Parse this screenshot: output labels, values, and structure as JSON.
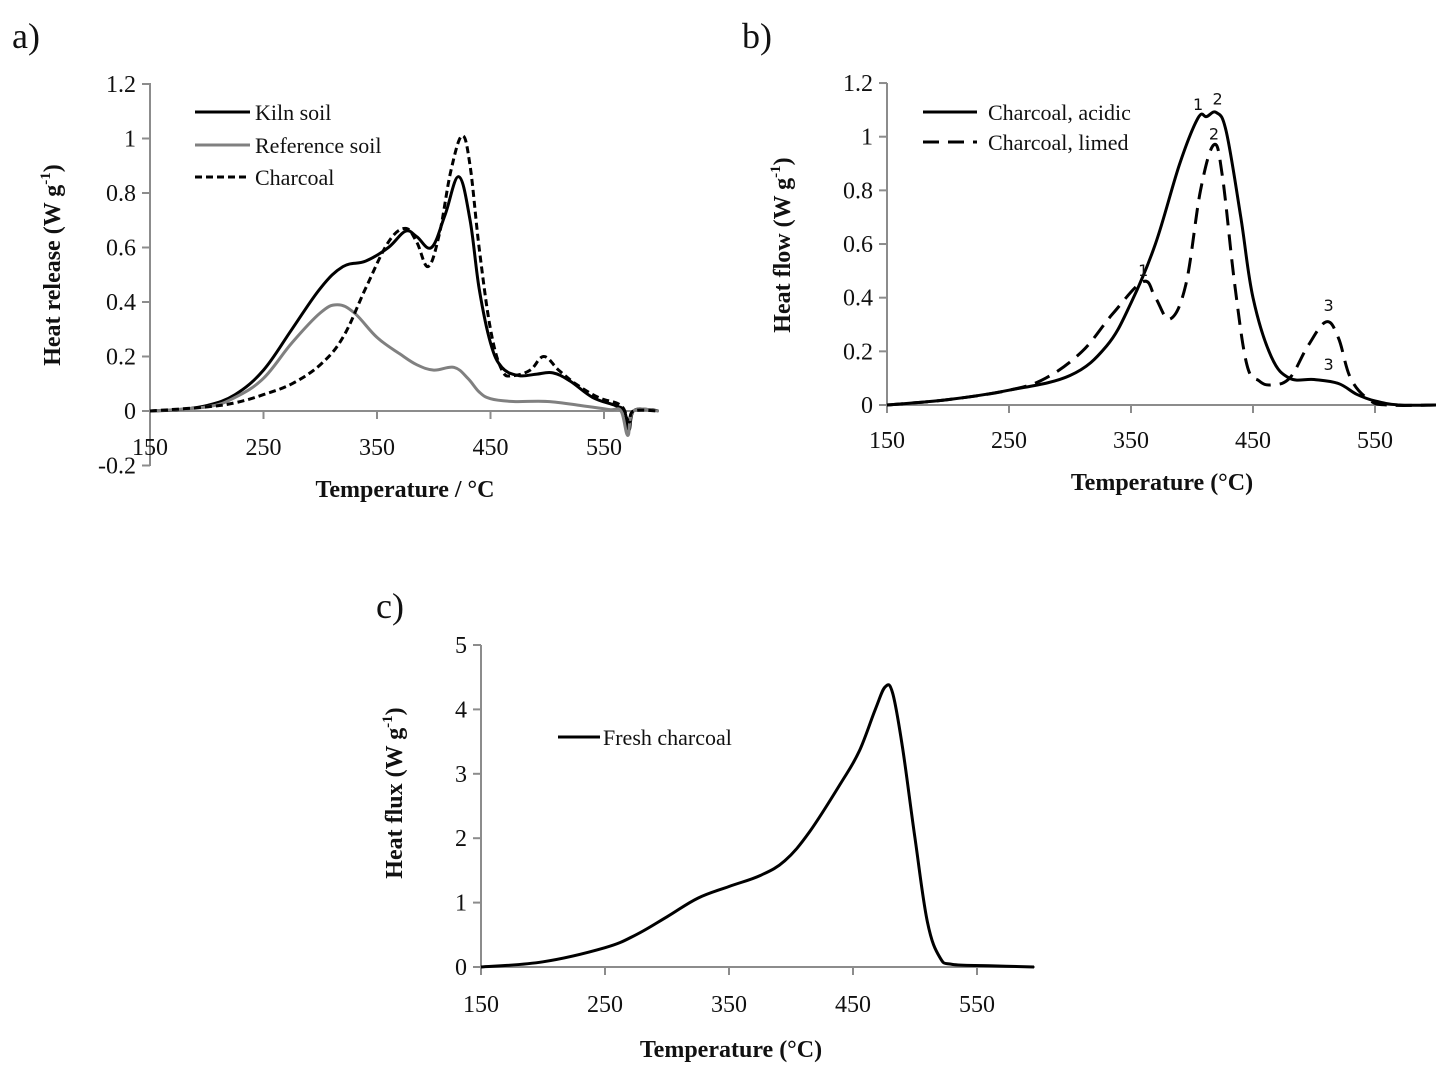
{
  "chart_data": [
    {
      "type": "line",
      "panel_label": "a)",
      "title": "",
      "xlabel": "Temperature / °C",
      "ylabel": "Heat release (W g",
      "ylabel_sup": "-1",
      "ylabel_close": ")",
      "xlim": [
        150,
        600
      ],
      "ylim": [
        -0.2,
        1.2
      ],
      "xticks": [
        "150",
        "250",
        "350",
        "450",
        "550"
      ],
      "xtick_values": [
        150,
        250,
        350,
        450,
        550
      ],
      "yticks": [
        "-0.2",
        "0",
        "0.2",
        "0.4",
        "0.6",
        "0.8",
        "1",
        "1.2"
      ],
      "ytick_values": [
        -0.2,
        0,
        0.2,
        0.4,
        0.6,
        0.8,
        1.0,
        1.2
      ],
      "grid": false,
      "legend_position": "top-left",
      "series": [
        {
          "name": "Kiln soil",
          "color": "#000000",
          "style": "solid",
          "x": [
            150,
            175,
            200,
            225,
            250,
            275,
            300,
            320,
            340,
            360,
            375,
            385,
            398,
            410,
            422,
            432,
            440,
            450,
            460,
            475,
            490,
            505,
            520,
            540,
            560,
            568,
            572,
            576,
            590,
            598
          ],
          "y": [
            0,
            0.005,
            0.02,
            0.06,
            0.15,
            0.3,
            0.45,
            0.53,
            0.55,
            0.6,
            0.66,
            0.64,
            0.6,
            0.72,
            0.86,
            0.7,
            0.45,
            0.25,
            0.16,
            0.13,
            0.135,
            0.14,
            0.11,
            0.05,
            0.02,
            0.0,
            -0.07,
            0.0,
            0.005,
            0.0
          ]
        },
        {
          "name": "Reference soil",
          "color": "#808080",
          "style": "solid",
          "x": [
            150,
            200,
            225,
            250,
            275,
            300,
            315,
            330,
            350,
            370,
            385,
            400,
            418,
            430,
            440,
            450,
            470,
            500,
            530,
            555,
            565,
            571,
            576,
            598
          ],
          "y": [
            0,
            0.015,
            0.05,
            0.12,
            0.25,
            0.36,
            0.39,
            0.36,
            0.27,
            0.21,
            0.17,
            0.15,
            0.16,
            0.12,
            0.07,
            0.045,
            0.035,
            0.035,
            0.02,
            0.005,
            0.0,
            -0.09,
            0.0,
            0.0
          ]
        },
        {
          "name": "Charcoal",
          "color": "#000000",
          "style": "dotted",
          "x": [
            150,
            200,
            225,
            250,
            275,
            300,
            320,
            340,
            360,
            375,
            385,
            395,
            405,
            415,
            425,
            432,
            440,
            450,
            460,
            470,
            485,
            497,
            510,
            525,
            545,
            565,
            572,
            576,
            598
          ],
          "y": [
            0,
            0.015,
            0.03,
            0.06,
            0.1,
            0.17,
            0.27,
            0.45,
            0.62,
            0.67,
            0.62,
            0.53,
            0.65,
            0.88,
            1.01,
            0.9,
            0.6,
            0.3,
            0.15,
            0.13,
            0.15,
            0.2,
            0.15,
            0.1,
            0.05,
            0.02,
            -0.04,
            0.0,
            0.0
          ]
        }
      ],
      "annotations": []
    },
    {
      "type": "line",
      "panel_label": "b)",
      "title": "",
      "xlabel": "Temperature (°C)",
      "ylabel": "Heat flow (W g",
      "ylabel_sup": "-1",
      "ylabel_close": ")",
      "xlim": [
        150,
        600
      ],
      "ylim": [
        0,
        1.2
      ],
      "xticks": [
        "150",
        "250",
        "350",
        "450",
        "550"
      ],
      "xtick_values": [
        150,
        250,
        350,
        450,
        550
      ],
      "yticks": [
        "0",
        "0.2",
        "0.4",
        "0.6",
        "0.8",
        "1",
        "1.2"
      ],
      "ytick_values": [
        0,
        0.2,
        0.4,
        0.6,
        0.8,
        1.0,
        1.2
      ],
      "grid": false,
      "legend_position": "top-left",
      "series": [
        {
          "name": "Charcoal, acidic",
          "color": "#000000",
          "style": "solid",
          "x": [
            150,
            200,
            250,
            300,
            330,
            350,
            370,
            390,
            405,
            412,
            420,
            428,
            440,
            450,
            465,
            480,
            500,
            520,
            535,
            550,
            570,
            600
          ],
          "y": [
            0,
            0.02,
            0.055,
            0.11,
            0.22,
            0.38,
            0.6,
            0.9,
            1.07,
            1.075,
            1.09,
            1.02,
            0.7,
            0.4,
            0.18,
            0.1,
            0.095,
            0.08,
            0.04,
            0.015,
            0.0,
            0.0
          ]
        },
        {
          "name": "Charcoal, limed",
          "color": "#000000",
          "style": "dashed",
          "x": [
            150,
            200,
            250,
            280,
            310,
            335,
            360,
            370,
            382,
            395,
            407,
            418,
            425,
            435,
            445,
            455,
            465,
            480,
            495,
            510,
            520,
            530,
            545,
            560,
            600
          ],
          "y": [
            0,
            0.02,
            0.055,
            0.1,
            0.2,
            0.34,
            0.46,
            0.4,
            0.32,
            0.45,
            0.8,
            0.97,
            0.85,
            0.45,
            0.15,
            0.09,
            0.075,
            0.1,
            0.22,
            0.31,
            0.25,
            0.1,
            0.02,
            0.0,
            0.0
          ]
        }
      ],
      "annotations": [
        {
          "text": "1",
          "x": 405,
          "y": 1.1
        },
        {
          "text": "2",
          "x": 421,
          "y": 1.12
        },
        {
          "text": "2",
          "x": 418,
          "y": 0.99
        },
        {
          "text": "1",
          "x": 360,
          "y": 0.48
        },
        {
          "text": "3",
          "x": 512,
          "y": 0.35
        },
        {
          "text": "3",
          "x": 512,
          "y": 0.13
        }
      ]
    },
    {
      "type": "line",
      "panel_label": "c)",
      "title": "",
      "xlabel": "Temperature (°C)",
      "ylabel": "Heat flux (W g",
      "ylabel_sup": "-1",
      "ylabel_close": ")",
      "xlim": [
        150,
        600
      ],
      "ylim": [
        0,
        5
      ],
      "xticks": [
        "150",
        "250",
        "350",
        "450",
        "550"
      ],
      "xtick_values": [
        150,
        250,
        350,
        450,
        550
      ],
      "yticks": [
        "0",
        "1",
        "2",
        "3",
        "4",
        "5"
      ],
      "ytick_values": [
        0,
        1,
        2,
        3,
        4,
        5
      ],
      "grid": false,
      "legend_position": "upper-left",
      "series": [
        {
          "name": "Fresh charcoal",
          "color": "#000000",
          "style": "solid",
          "x": [
            150,
            200,
            250,
            275,
            300,
            325,
            350,
            375,
            395,
            415,
            440,
            455,
            468,
            476,
            482,
            490,
            500,
            510,
            520,
            530,
            560,
            596
          ],
          "y": [
            0,
            0.08,
            0.3,
            0.5,
            0.78,
            1.07,
            1.25,
            1.42,
            1.65,
            2.1,
            2.85,
            3.35,
            4.0,
            4.35,
            4.25,
            3.4,
            2.0,
            0.7,
            0.15,
            0.04,
            0.02,
            0.0
          ]
        }
      ],
      "annotations": []
    }
  ]
}
